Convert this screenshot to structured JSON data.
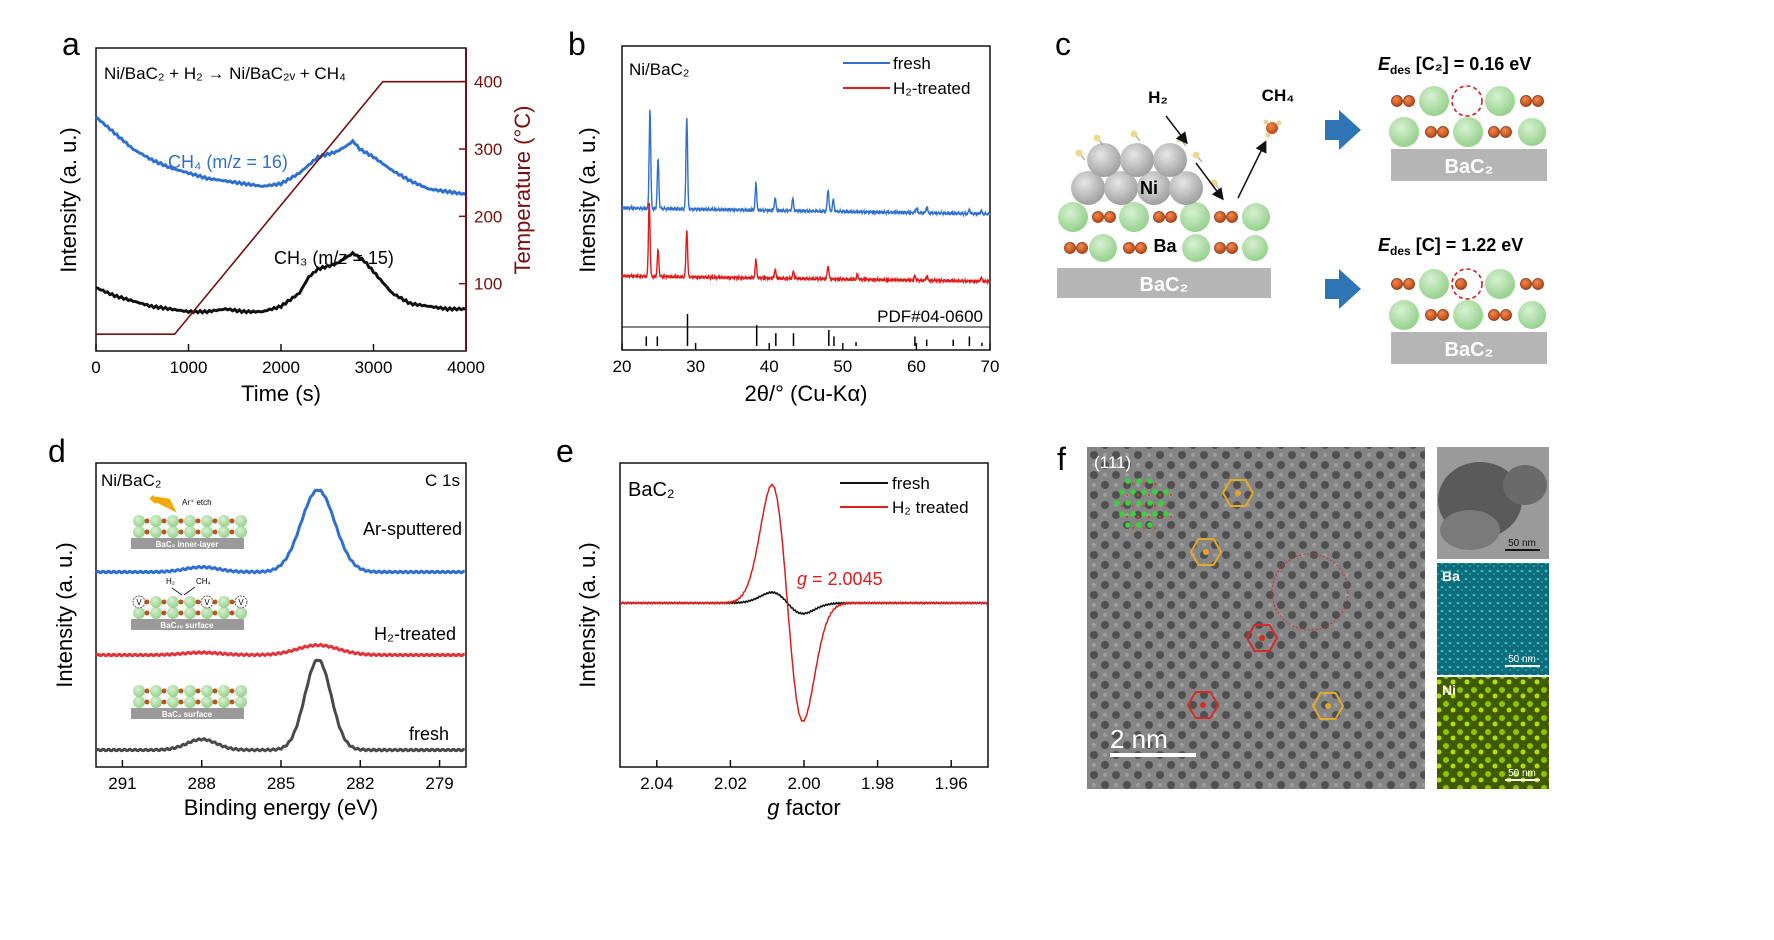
{
  "panels": {
    "a": "a",
    "b": "b",
    "c": "c",
    "d": "d",
    "e": "e",
    "f": "f"
  },
  "chart_data": [
    {
      "id": "a",
      "type": "line",
      "annotation": "Ni/BaC₂ + H₂ → Ni/BaC₂ᵥ + CH₄",
      "xlabel": "Time (s)",
      "ylabel": "Intensity (a. u.)",
      "y2label": "Temperature (°C)",
      "xlim": [
        0,
        4000
      ],
      "xticks": [
        "0",
        "1000",
        "2000",
        "3000",
        "4000"
      ],
      "y2lim": [
        0,
        450
      ],
      "y2ticks": [
        "100",
        "200",
        "300",
        "400"
      ],
      "series": [
        {
          "name": "CH₄ (m/z = 16)",
          "color": "#2f6fd1",
          "x": [
            0,
            200,
            400,
            600,
            800,
            1000,
            1200,
            1400,
            1600,
            1800,
            2000,
            2200,
            2400,
            2600,
            2700,
            2780,
            2850,
            3000,
            3200,
            3400,
            3600,
            3800,
            4000
          ],
          "values": [
            0.84,
            0.78,
            0.72,
            0.68,
            0.65,
            0.63,
            0.61,
            0.6,
            0.59,
            0.58,
            0.59,
            0.63,
            0.69,
            0.71,
            0.73,
            0.75,
            0.72,
            0.69,
            0.64,
            0.6,
            0.57,
            0.56,
            0.55
          ]
        },
        {
          "name": "CH₃ (m/z = 15)",
          "color": "#111111",
          "x": [
            0,
            200,
            400,
            600,
            800,
            1000,
            1200,
            1400,
            1600,
            1800,
            2000,
            2200,
            2300,
            2400,
            2600,
            2780,
            2900,
            3000,
            3200,
            3400,
            3600,
            3800,
            4000
          ],
          "values": [
            0.2,
            0.17,
            0.15,
            0.13,
            0.12,
            0.11,
            0.11,
            0.12,
            0.11,
            0.11,
            0.13,
            0.18,
            0.24,
            0.27,
            0.29,
            0.33,
            0.3,
            0.26,
            0.18,
            0.14,
            0.13,
            0.12,
            0.12
          ]
        },
        {
          "name": "Temperature",
          "color": "#7a0d0d",
          "axis": "y2",
          "x": [
            0,
            850,
            3100,
            4000
          ],
          "values": [
            25,
            25,
            400,
            400
          ]
        }
      ]
    },
    {
      "id": "b",
      "type": "line",
      "annotation": "Ni/BaC₂",
      "reference": "PDF#04-0600",
      "xlabel": "2θ/° (Cu-Kα)",
      "ylabel": "Intensity (a. u.)",
      "xlim": [
        20,
        70
      ],
      "xticks": [
        "20",
        "30",
        "40",
        "50",
        "60",
        "70"
      ],
      "legend": "top-right",
      "series": [
        {
          "name": "fresh",
          "color": "#2f6fd1",
          "peaks": [
            [
              23.8,
              1.0
            ],
            [
              24.9,
              0.5
            ],
            [
              28.8,
              0.93
            ],
            [
              38.2,
              0.27
            ],
            [
              40.8,
              0.13
            ],
            [
              43.2,
              0.12
            ],
            [
              48.0,
              0.22
            ],
            [
              48.7,
              0.12
            ],
            [
              60.0,
              0.05
            ],
            [
              61.4,
              0.06
            ],
            [
              67.2,
              0.04
            ],
            [
              68.8,
              0.03
            ]
          ]
        },
        {
          "name": "H₂-treated",
          "color": "#e01b1b",
          "peaks": [
            [
              23.7,
              0.85
            ],
            [
              24.9,
              0.3
            ],
            [
              28.8,
              0.53
            ],
            [
              38.2,
              0.2
            ],
            [
              40.8,
              0.1
            ],
            [
              43.3,
              0.08
            ],
            [
              48.0,
              0.15
            ],
            [
              52.0,
              0.05
            ],
            [
              59.8,
              0.05
            ],
            [
              61.4,
              0.05
            ],
            [
              68.8,
              0.04
            ]
          ]
        },
        {
          "name": "PDF#04-0600",
          "color": "#000000",
          "sticks": [
            [
              23.3,
              0.3
            ],
            [
              24.8,
              0.3
            ],
            [
              28.9,
              1.0
            ],
            [
              38.3,
              0.65
            ],
            [
              40.9,
              0.4
            ],
            [
              43.3,
              0.4
            ],
            [
              48.1,
              0.5
            ],
            [
              48.8,
              0.3
            ],
            [
              51.8,
              0.12
            ],
            [
              59.8,
              0.3
            ],
            [
              61.4,
              0.2
            ],
            [
              65.0,
              0.2
            ],
            [
              67.2,
              0.3
            ],
            [
              68.9,
              0.1
            ]
          ]
        }
      ]
    },
    {
      "id": "d",
      "type": "line",
      "annotation": "Ni/BaC₂",
      "annotation_right": "C 1s",
      "xlabel": "Binding energy (eV)",
      "ylabel": "Intensity (a. u.)",
      "xlim": [
        292,
        278
      ],
      "xticks": [
        "291",
        "288",
        "285",
        "282",
        "279"
      ],
      "series": [
        {
          "name": "Ar-sputtered",
          "color": "#2f6fd1",
          "offset": 2,
          "peaks": [
            [
              283.6,
              1.0,
              0.9
            ],
            [
              288.0,
              0.06,
              0.9
            ]
          ]
        },
        {
          "name": "H₂-treated",
          "color": "#e0353b",
          "offset": 1,
          "peaks": [
            [
              283.6,
              0.12,
              1.1
            ],
            [
              288.0,
              0.03,
              1.0
            ]
          ]
        },
        {
          "name": "fresh",
          "color": "#4a4a4a",
          "offset": 0,
          "peaks": [
            [
              283.6,
              1.1,
              0.7
            ],
            [
              288.0,
              0.13,
              0.8
            ]
          ]
        }
      ],
      "insets": [
        {
          "caption": "BaC₂ inner-layer",
          "note": "Ar⁺ etch"
        },
        {
          "caption": "BaC₂ᵥ surface",
          "h2": "H₂",
          "ch4": "CH₄",
          "vac": "V"
        },
        {
          "caption": "BaC₂ surface"
        }
      ]
    },
    {
      "id": "e",
      "type": "line",
      "annotation": "BaC₂",
      "xlabel": "g factor",
      "ylabel": "Intensity (a. u.)",
      "xlim": [
        2.05,
        1.95
      ],
      "xticks": [
        "2.04",
        "2.02",
        "2.00",
        "1.98",
        "1.96"
      ],
      "legend": "top-right",
      "g_label": "g",
      "g_value": " = 2.0045",
      "center": 2.0045,
      "series": [
        {
          "name": "fresh",
          "color": "#111111",
          "amplitude": 0.09
        },
        {
          "name": "H₂ treated",
          "color": "#e01b1b",
          "amplitude": 1.0
        }
      ]
    }
  ],
  "schematic_c": {
    "h2": "H₂",
    "ch4": "CH₄",
    "ni": "Ni",
    "ba": "Ba",
    "substrate": "BaC₂",
    "edes1_prefix": "E",
    "edes_sub": "des",
    "edes1_value": " [C₂] = 0.16 eV",
    "edes2_value": " [C] = 1.22 eV",
    "colors": {
      "ba": "#a9d8a0",
      "c": "#c0501c",
      "ni": "#b3b3b3",
      "arrow": "#2e75b6",
      "sub": "#b5b5b5"
    }
  },
  "tem_f": {
    "label": "(111)",
    "scale": "2 nm",
    "map_scale": "50 nm",
    "map1": "Ba",
    "map2": "Ni",
    "hex_gold": "#e3a72a",
    "hex_red": "#d42b2b"
  }
}
